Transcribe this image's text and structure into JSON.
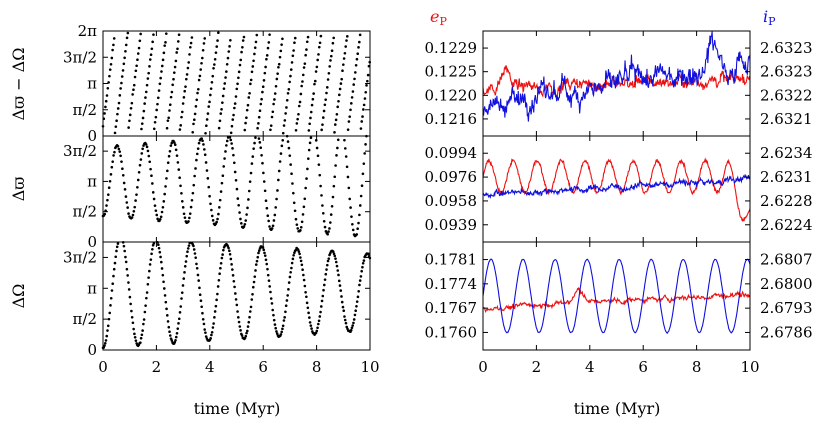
{
  "chart_data": [
    {
      "type": "scatter",
      "panel": "left-top",
      "ylabel": "Δϖ − ΔΩ",
      "ytick_labels": [
        "0",
        "π/2",
        "π",
        "3π/2",
        "2π"
      ],
      "ylim": [
        0,
        6.2832
      ],
      "xlim": [
        0,
        10
      ],
      "grid": false,
      "series": [
        {
          "color": "#000000",
          "model": "sawtooth",
          "mean_period_myr": 0.48,
          "period_jitter": 0.05,
          "sample_step_myr": 0.03,
          "value_range": [
            0.2,
            6.2
          ]
        }
      ]
    },
    {
      "type": "scatter",
      "panel": "left-middle",
      "ylabel": "Δϖ",
      "ytick_labels": [
        "0",
        "π/2",
        "π",
        "3π/2"
      ],
      "ylim": [
        0,
        5.4978
      ],
      "xlim": [
        0,
        10
      ],
      "grid": false,
      "series": [
        {
          "color": "#000000",
          "model": "sine",
          "mean": 3.1416,
          "amplitude_start": 1.8,
          "amplitude_end": 2.9,
          "period_myr": 1.05,
          "sample_step_myr": 0.033
        }
      ]
    },
    {
      "type": "scatter",
      "panel": "left-bottom",
      "ylabel": "ΔΩ",
      "xlabel": "time (Myr)",
      "ytick_labels": [
        "0",
        "π/2",
        "π",
        "3π/2"
      ],
      "xtick_labels": [
        "0",
        "2",
        "4",
        "6",
        "8",
        "10"
      ],
      "ylim": [
        0,
        5.4978
      ],
      "xlim": [
        0,
        10
      ],
      "grid": false,
      "series": [
        {
          "color": "#000000",
          "model": "sine",
          "mean": 2.95,
          "amplitude_start": 2.85,
          "amplitude_end": 1.95,
          "period_myr": 1.32,
          "sample_step_myr": 0.028
        }
      ]
    },
    {
      "type": "line",
      "panel": "right-top",
      "ylabel_left": "e",
      "ylabel_left_sub": "P",
      "ylabel_right": "i",
      "ylabel_right_sub": "P",
      "ytick_labels_left": [
        "0.1216",
        "0.1220",
        "0.1225",
        "0.1229"
      ],
      "ytick_labels_right": [
        "2.6321",
        "2.6322",
        "2.6323",
        "2.6323"
      ],
      "ylim_left": [
        0.1213,
        0.1232
      ],
      "xlim": [
        0,
        10
      ],
      "grid": false,
      "series": [
        {
          "name": "e",
          "axis": "left",
          "color": "#ee1111",
          "model": "noisy",
          "level": 0.12215,
          "drift_to": 0.12235,
          "noise": 0.00018,
          "bump_at_myr": 0.85,
          "bump": 0.0004
        },
        {
          "name": "i",
          "axis": "right",
          "color": "#1111dd",
          "model": "noisy",
          "level": 0.12185,
          "drift_to": 0.12265,
          "noise": 0.00035,
          "bump_at_myr": 8.6,
          "bump": 0.0005
        }
      ]
    },
    {
      "type": "line",
      "panel": "right-middle",
      "ytick_labels_left": [
        "0.0939",
        "0.0958",
        "0.0976",
        "0.0994"
      ],
      "ytick_labels_right": [
        "2.6224",
        "2.6228",
        "2.6231",
        "2.6234"
      ],
      "ylim_left": [
        0.093,
        0.1003
      ],
      "xlim": [
        0,
        10
      ],
      "grid": false,
      "series": [
        {
          "name": "e",
          "axis": "left",
          "color": "#ee1111",
          "model": "sine",
          "mean": 0.0975,
          "amplitude": 0.0011,
          "period_myr": 0.9,
          "noise": 0.0002,
          "end_drop_to": 0.0945
        },
        {
          "name": "i",
          "axis": "left",
          "color": "#1111dd",
          "model": "noisy",
          "level": 0.0963,
          "drift_to": 0.0973,
          "noise": 0.00035
        }
      ]
    },
    {
      "type": "line",
      "panel": "right-bottom",
      "xlabel": "time (Myr)",
      "xtick_labels": [
        "0",
        "2",
        "4",
        "6",
        "8",
        "10"
      ],
      "ytick_labels_left": [
        "0.1760",
        "0.1767",
        "0.1774",
        "0.1781"
      ],
      "ytick_labels_right": [
        "2.6786",
        "2.6793",
        "2.6800",
        "2.6807"
      ],
      "ylim_left": [
        0.1756,
        0.1787
      ],
      "xlim": [
        0,
        10
      ],
      "grid": false,
      "series": [
        {
          "name": "e",
          "axis": "left",
          "color": "#ee1111",
          "model": "noisy",
          "level": 0.1768,
          "drift_to": 0.1772,
          "noise": 0.00012,
          "bump_at_myr": 3.6,
          "bump": 0.0004
        },
        {
          "name": "i",
          "axis": "left",
          "color": "#1111dd",
          "model": "sine",
          "mean": 0.17715,
          "amplitude": 0.00105,
          "period_myr": 1.2,
          "noise": 2e-05
        }
      ]
    }
  ]
}
